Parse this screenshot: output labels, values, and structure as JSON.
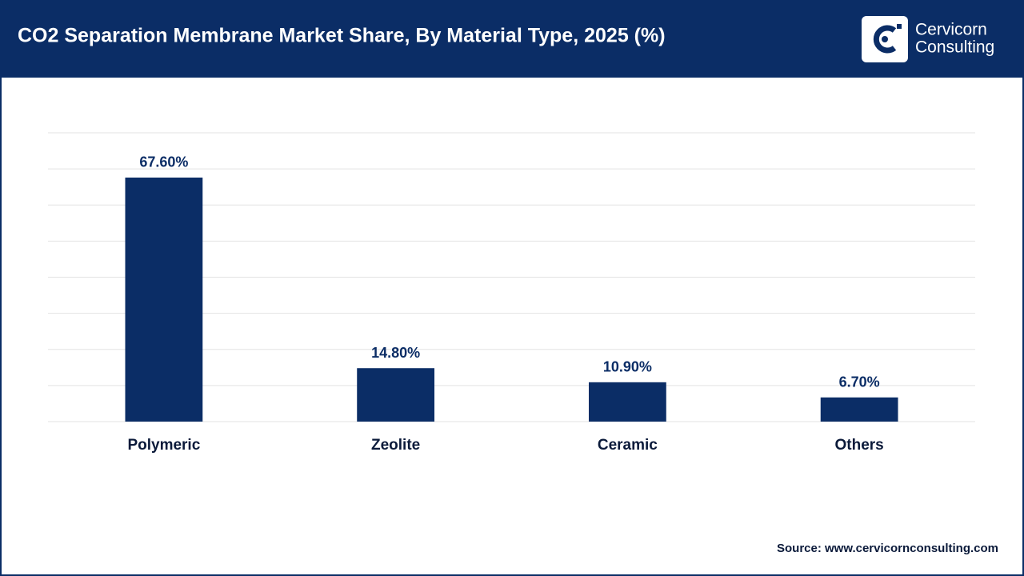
{
  "chart_data": {
    "type": "bar",
    "title": "CO2 Separation Membrane Market Share, By Material Type, 2025 (%)",
    "brand": [
      "Cervicorn",
      "Consulting"
    ],
    "categories": [
      "Polymeric",
      "Zeolite",
      "Ceramic",
      "Others"
    ],
    "values": [
      67.6,
      14.8,
      10.9,
      6.7
    ],
    "value_labels": [
      "67.60%",
      "14.80%",
      "10.90%",
      "6.70%"
    ],
    "color": "#0b2d66",
    "ylim": [
      0,
      80
    ],
    "yticks": [
      0,
      10,
      20,
      30,
      40,
      50,
      60,
      70,
      80
    ],
    "grid": true,
    "source": "Source: www.cervicornconsulting.com"
  }
}
